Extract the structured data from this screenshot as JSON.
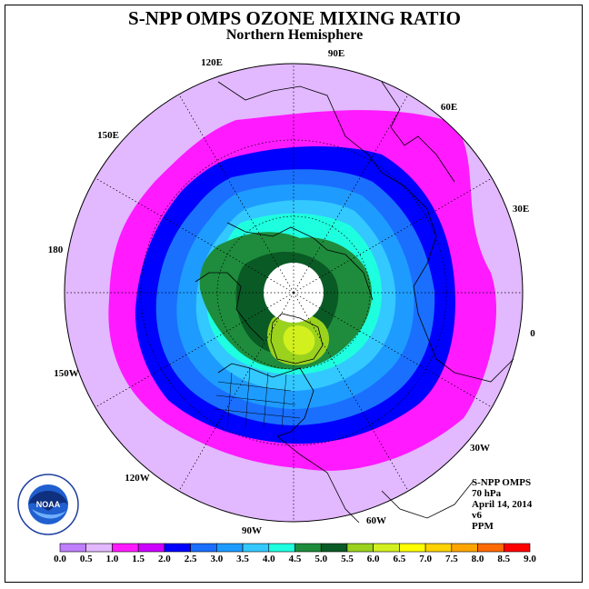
{
  "title": "S-NPP OMPS OZONE MIXING RATIO",
  "subtitle": "Northern Hemisphere",
  "longitude_labels": [
    "90E",
    "60E",
    "30E",
    "0",
    "30W",
    "60W",
    "90W",
    "120W",
    "150W",
    "180",
    "150E",
    "120E"
  ],
  "info": {
    "instrument": "S-NPP OMPS",
    "level": "70 hPa",
    "date": "April 14, 2014",
    "version": "v6",
    "units": "PPM"
  },
  "logo": {
    "text": "NOAA",
    "ring_text": "NATIONAL OCEANIC AND ATMOSPHERIC ADMINISTRATION · U.S. DEPARTMENT OF COMMERCE"
  },
  "colorbar": {
    "ticks": [
      "0.0",
      "0.5",
      "1.0",
      "1.5",
      "2.0",
      "2.5",
      "3.0",
      "3.5",
      "4.0",
      "4.5",
      "5.0",
      "5.5",
      "6.0",
      "6.5",
      "7.0",
      "7.5",
      "8.0",
      "8.5",
      "9.0"
    ],
    "colors": [
      "#bf7fff",
      "#e2b8ff",
      "#ff1aff",
      "#cc00ff",
      "#0000ff",
      "#1a6fff",
      "#1e9bff",
      "#33c8ff",
      "#1effdf",
      "#1e8c3c",
      "#0a5a25",
      "#9ad21e",
      "#d2f01e",
      "#ffff00",
      "#ffd200",
      "#ffa500",
      "#ff6a00",
      "#ff0000",
      "#9a6a46"
    ]
  }
}
